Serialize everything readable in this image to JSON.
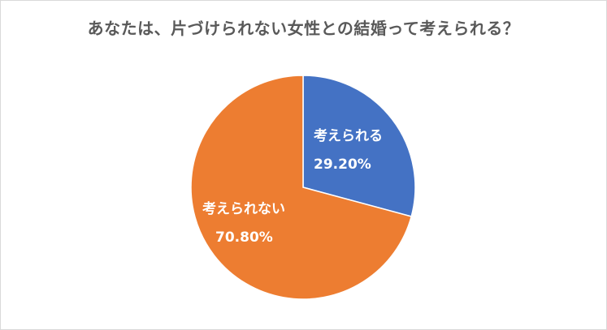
{
  "chart_data": {
    "type": "pie",
    "title": "あなたは、片づけられない女性との結婚って考えられる？",
    "slices": [
      {
        "label": "考えられる",
        "value": 29.2,
        "display": "29.20%",
        "color": "#4472C4"
      },
      {
        "label": "考えられない",
        "value": 70.8,
        "display": "70.80%",
        "color": "#ED7D31"
      }
    ],
    "start_angle_deg": 0,
    "direction": "clockwise",
    "legend": "none"
  }
}
